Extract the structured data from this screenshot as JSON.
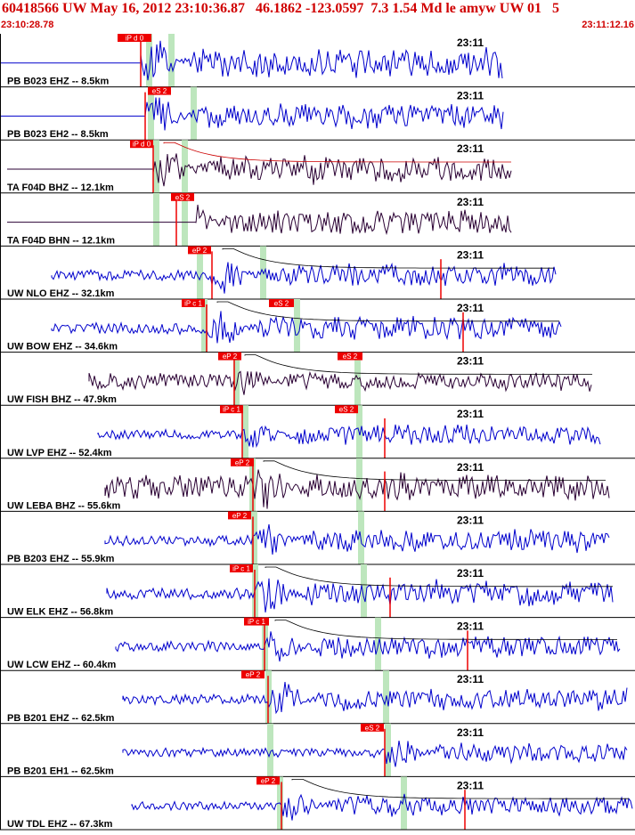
{
  "header": {
    "title": "60418566 UW May 16, 2012 23:10:36.87   46.1862 -123.0597  7.3 1.54 Md le amyw UW 01   5",
    "start_time": "23:10:28.78",
    "end_time": "23:11:12.16"
  },
  "time_mark": "23:11",
  "colors": {
    "title": "#d00000",
    "trace_blue": "#0000cc",
    "trace_dark": "#2a0033",
    "pick_box": "#ee0000",
    "pick_window": "#bde6bd",
    "fit_red": "#cc0000",
    "divider": "#000000"
  },
  "channels": [
    {
      "label": "PB B023 EHZ -- 8.5km",
      "pick": "iP d 0",
      "color": "blue"
    },
    {
      "label": "PB B023 EH2 -- 8.5km",
      "pick": "eS 2",
      "color": "blue"
    },
    {
      "label": "TA F04D BHZ -- 12.1km",
      "pick": "iP d 0",
      "color": "dark"
    },
    {
      "label": "TA F04D BHN -- 12.1km",
      "pick": "eS 2",
      "color": "dark"
    },
    {
      "label": "UW NLO EHZ -- 32.1km",
      "pick": "eP 2",
      "color": "blue"
    },
    {
      "label": "UW BOW EHZ -- 34.6km",
      "pick": "iP c 1",
      "pick2": "eS 2",
      "color": "blue"
    },
    {
      "label": "UW FISH BHZ -- 47.9km",
      "pick": "eP 2",
      "pick2": "eS 2",
      "color": "dark"
    },
    {
      "label": "UW LVP EHZ -- 52.4km",
      "pick": "iP c 1",
      "pick2": "eS 2",
      "color": "blue"
    },
    {
      "label": "UW LEBA BHZ -- 55.6km",
      "pick": "eP 2",
      "color": "dark"
    },
    {
      "label": "PB B203 EHZ -- 55.9km",
      "pick": "eP 2",
      "color": "blue"
    },
    {
      "label": "UW ELK EHZ -- 56.8km",
      "pick": "iP c 1",
      "color": "blue"
    },
    {
      "label": "UW LCW EHZ -- 60.4km",
      "pick": "iP c 1",
      "color": "blue"
    },
    {
      "label": "PB B201 EHZ -- 62.5km",
      "pick": "eP 2",
      "color": "blue"
    },
    {
      "label": "PB B201 EH1 -- 62.5km",
      "pick": "eS 2",
      "color": "blue"
    },
    {
      "label": "UW TDL EHZ -- 67.3km",
      "pick": "eP 2",
      "color": "blue"
    }
  ]
}
